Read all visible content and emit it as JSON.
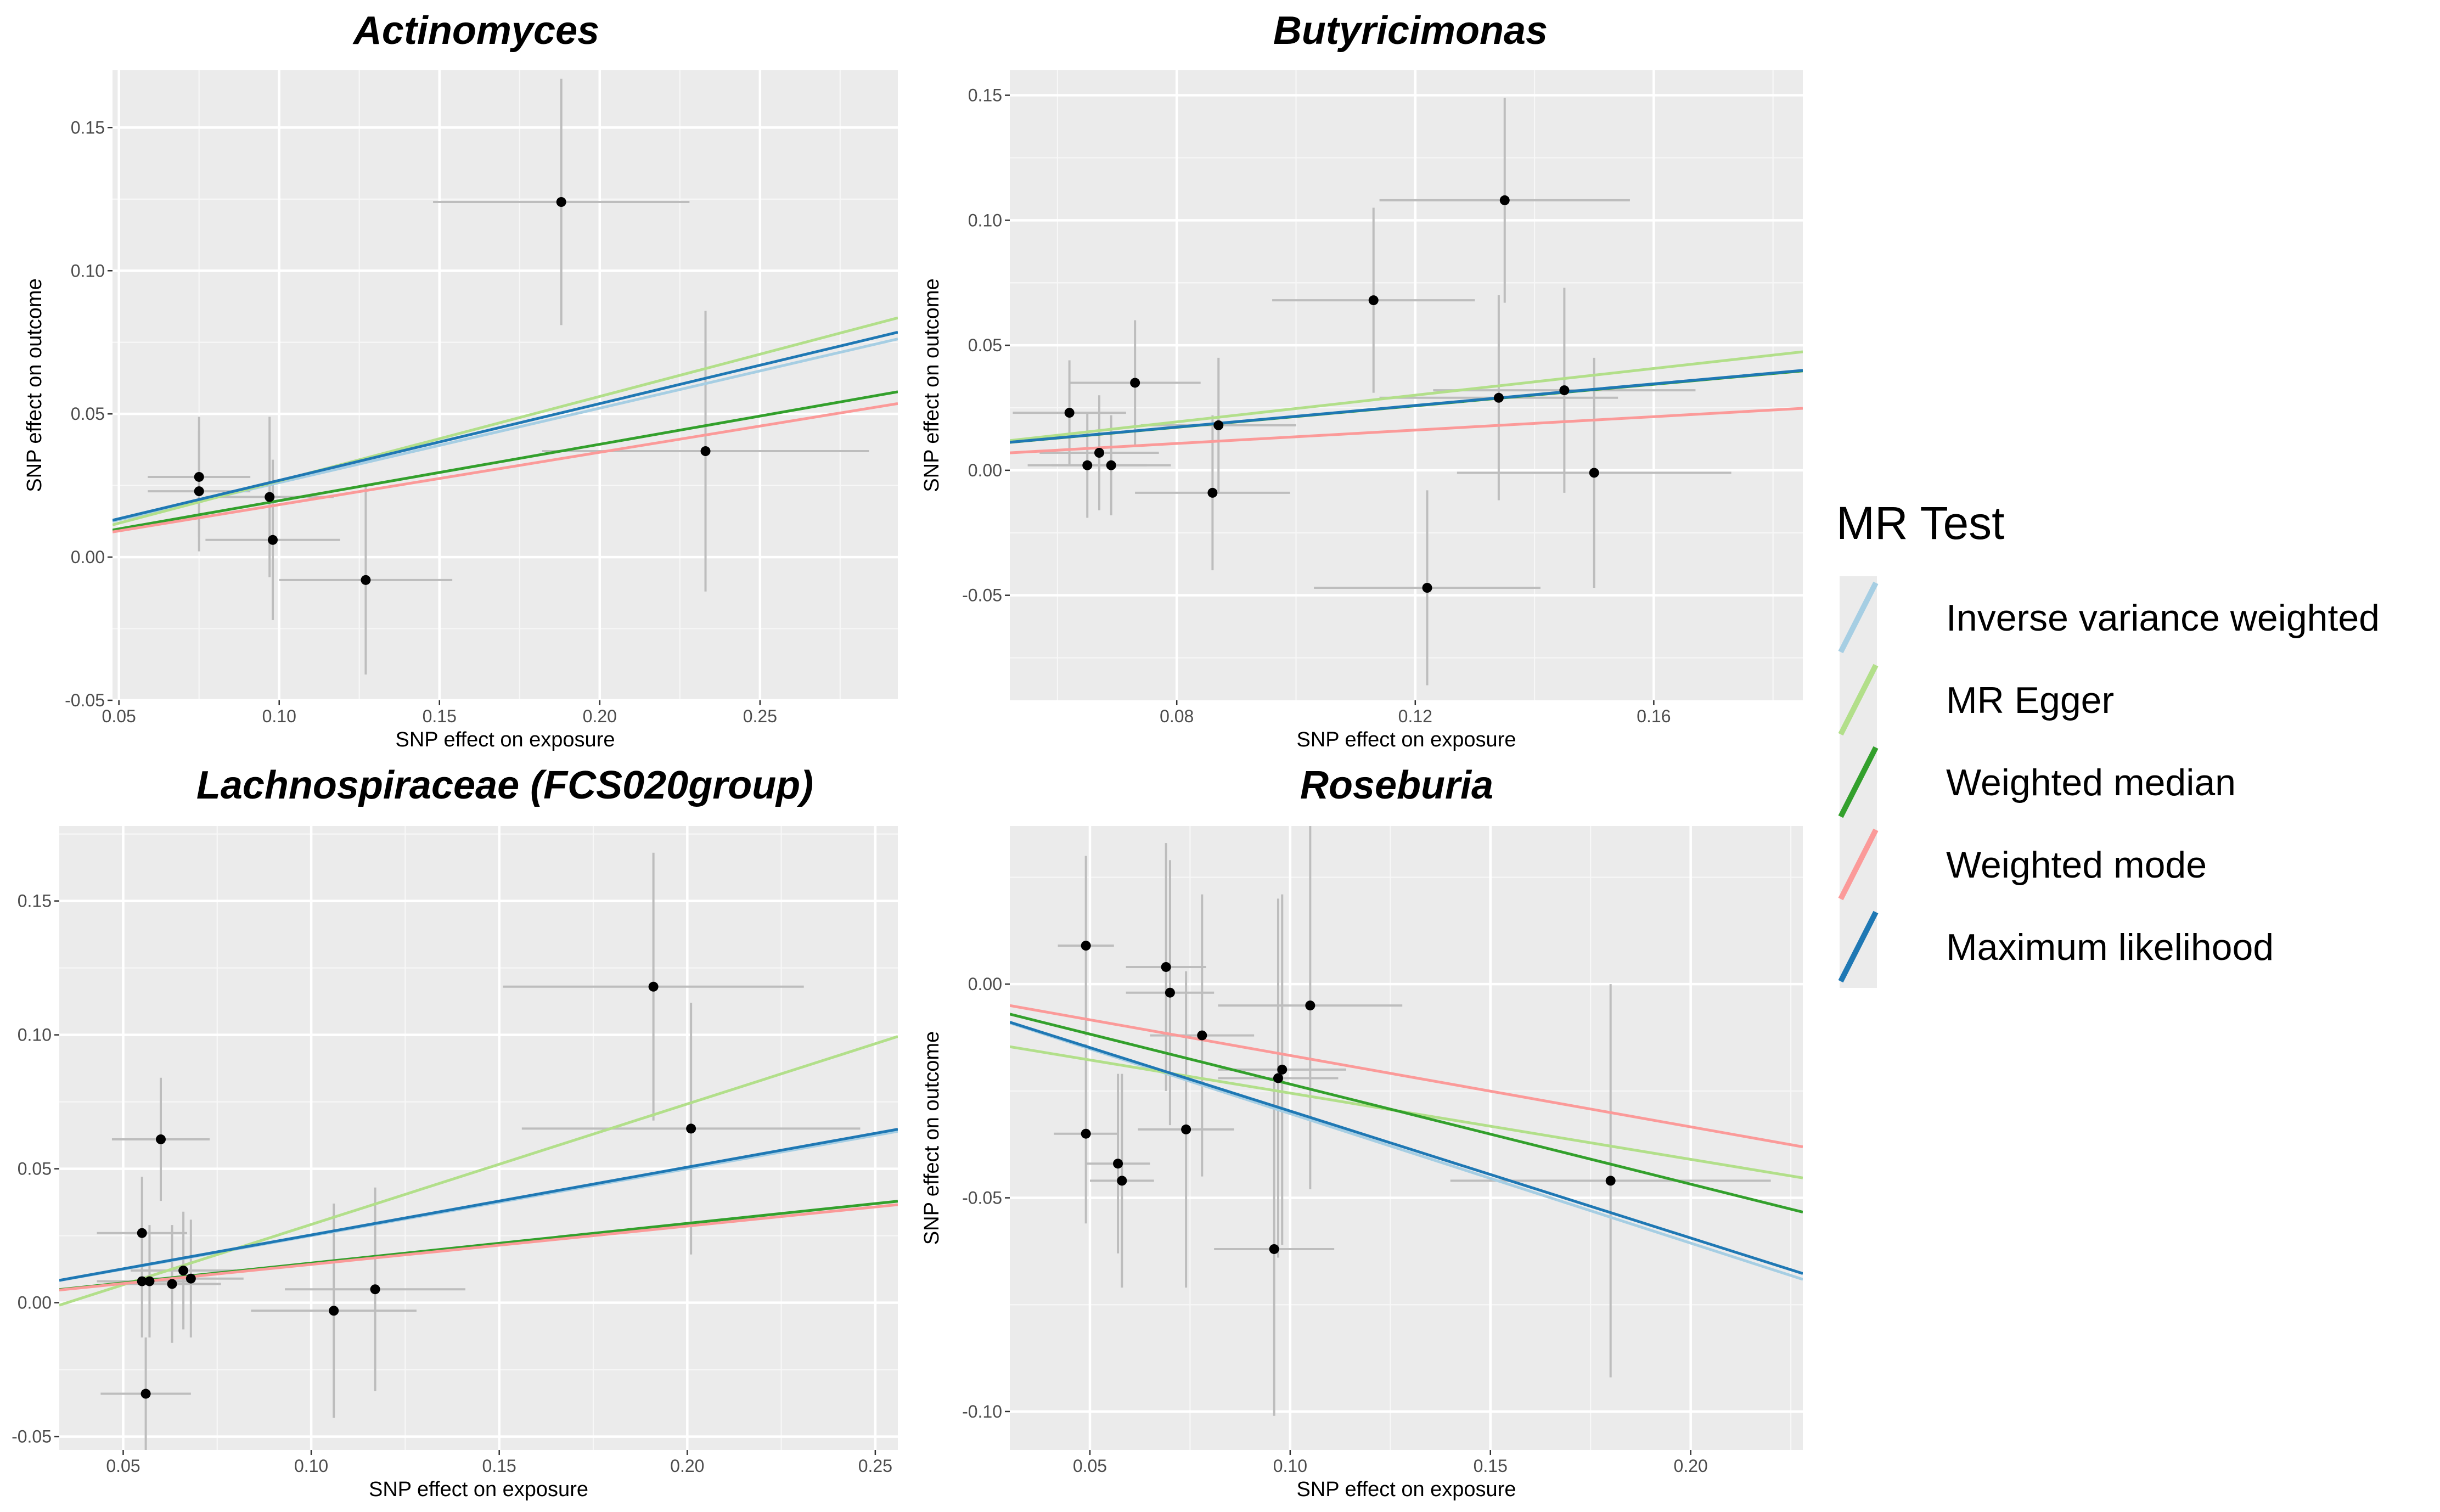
{
  "legend": {
    "title": "MR Test",
    "items": [
      {
        "label": "Inverse variance weighted",
        "color": "#a6cee3"
      },
      {
        "label": "MR Egger",
        "color": "#b2df8a"
      },
      {
        "label": "Weighted median",
        "color": "#33a02c"
      },
      {
        "label": "Weighted mode",
        "color": "#fb9a99"
      },
      {
        "label": "Maximum likelihood",
        "color": "#1f78b4"
      }
    ]
  },
  "chart_data": [
    {
      "type": "scatter",
      "title": "Actinomyces",
      "xlabel": "SNP effect on exposure",
      "ylabel": "SNP effect on outcome",
      "xlim": [
        0.048,
        0.293
      ],
      "ylim": [
        -0.05,
        0.17
      ],
      "xticks": [
        0.05,
        0.1,
        0.15,
        0.2,
        0.25
      ],
      "xtick_labels": [
        "0.05",
        "0.10",
        "0.15",
        "0.20",
        "0.25"
      ],
      "yticks": [
        -0.05,
        0,
        0.05,
        0.1,
        0.15
      ],
      "ytick_labels": [
        "-0.05",
        "0.00",
        "0.05",
        "0.10",
        "0.15"
      ],
      "grid": true,
      "points": [
        {
          "x": 0.075,
          "y": 0.028,
          "xerr": 0.016,
          "yerr": 0.021
        },
        {
          "x": 0.075,
          "y": 0.023,
          "xerr": 0.016,
          "yerr": 0.021
        },
        {
          "x": 0.097,
          "y": 0.021,
          "xerr": 0.02,
          "yerr": 0.028
        },
        {
          "x": 0.098,
          "y": 0.006,
          "xerr": 0.021,
          "yerr": 0.028
        },
        {
          "x": 0.127,
          "y": -0.008,
          "xerr": 0.027,
          "yerr": 0.033
        },
        {
          "x": 0.188,
          "y": 0.124,
          "xerr": 0.04,
          "yerr": 0.043
        },
        {
          "x": 0.233,
          "y": 0.037,
          "xerr": 0.051,
          "yerr": 0.049
        }
      ],
      "lines": [
        {
          "method": "Inverse variance weighted",
          "intercept": 0,
          "slope": 0.26
        },
        {
          "method": "MR Egger",
          "intercept": -0.0029,
          "slope": 0.295
        },
        {
          "method": "Weighted median",
          "intercept": 0,
          "slope": 0.197
        },
        {
          "method": "Weighted mode",
          "intercept": 0,
          "slope": 0.183
        },
        {
          "method": "Maximum likelihood",
          "intercept": 0,
          "slope": 0.268
        }
      ]
    },
    {
      "type": "scatter",
      "title": "Butyricimonas",
      "xlabel": "SNP effect on exposure",
      "ylabel": "SNP effect on outcome",
      "xlim": [
        0.052,
        0.185
      ],
      "ylim": [
        -0.092,
        0.16
      ],
      "xticks": [
        0.08,
        0.12,
        0.16
      ],
      "xtick_labels": [
        "0.08",
        "0.12",
        "0.16"
      ],
      "yticks": [
        -0.05,
        0,
        0.05,
        0.1,
        0.15
      ],
      "ytick_labels": [
        "-0.05",
        "0.00",
        "0.05",
        "0.10",
        "0.15"
      ],
      "grid": true,
      "points": [
        {
          "x": 0.062,
          "y": 0.023,
          "xerr": 0.0095,
          "yerr": 0.021
        },
        {
          "x": 0.065,
          "y": 0.002,
          "xerr": 0.01,
          "yerr": 0.021
        },
        {
          "x": 0.067,
          "y": 0.007,
          "xerr": 0.01,
          "yerr": 0.023
        },
        {
          "x": 0.069,
          "y": 0.002,
          "xerr": 0.01,
          "yerr": 0.02
        },
        {
          "x": 0.073,
          "y": 0.035,
          "xerr": 0.011,
          "yerr": 0.025
        },
        {
          "x": 0.086,
          "y": -0.009,
          "xerr": 0.013,
          "yerr": 0.031
        },
        {
          "x": 0.087,
          "y": 0.018,
          "xerr": 0.013,
          "yerr": 0.027
        },
        {
          "x": 0.113,
          "y": 0.068,
          "xerr": 0.017,
          "yerr": 0.037
        },
        {
          "x": 0.122,
          "y": -0.047,
          "xerr": 0.019,
          "yerr": 0.039
        },
        {
          "x": 0.134,
          "y": 0.029,
          "xerr": 0.02,
          "yerr": 0.041
        },
        {
          "x": 0.135,
          "y": 0.108,
          "xerr": 0.021,
          "yerr": 0.041
        },
        {
          "x": 0.145,
          "y": 0.032,
          "xerr": 0.022,
          "yerr": 0.041
        },
        {
          "x": 0.15,
          "y": -0.001,
          "xerr": 0.023,
          "yerr": 0.046
        }
      ],
      "lines": [
        {
          "method": "Inverse variance weighted",
          "intercept": 0,
          "slope": 0.216
        },
        {
          "method": "MR Egger",
          "intercept": -0.002,
          "slope": 0.267
        },
        {
          "method": "Weighted median",
          "intercept": 0,
          "slope": 0.215
        },
        {
          "method": "Weighted mode",
          "intercept": 0,
          "slope": 0.134
        },
        {
          "method": "Maximum likelihood",
          "intercept": 0,
          "slope": 0.216
        }
      ]
    },
    {
      "type": "scatter",
      "title": "Lachnospiraceae (FCS020group)",
      "xlabel": "SNP effect on exposure",
      "ylabel": "SNP effect on outcome",
      "xlim": [
        0.033,
        0.256
      ],
      "ylim": [
        -0.055,
        0.178
      ],
      "xticks": [
        0.05,
        0.1,
        0.15,
        0.2,
        0.25
      ],
      "xtick_labels": [
        "0.05",
        "0.10",
        "0.15",
        "0.20",
        "0.25"
      ],
      "yticks": [
        -0.05,
        0,
        0.05,
        0.1,
        0.15
      ],
      "ytick_labels": [
        "-0.05",
        "0.00",
        "0.05",
        "0.10",
        "0.15"
      ],
      "grid": true,
      "points": [
        {
          "x": 0.055,
          "y": 0.026,
          "xerr": 0.012,
          "yerr": 0.021
        },
        {
          "x": 0.055,
          "y": 0.008,
          "xerr": 0.012,
          "yerr": 0.021
        },
        {
          "x": 0.056,
          "y": -0.034,
          "xerr": 0.012,
          "yerr": 0.021
        },
        {
          "x": 0.057,
          "y": 0.008,
          "xerr": 0.012,
          "yerr": 0.021
        },
        {
          "x": 0.06,
          "y": 0.061,
          "xerr": 0.013,
          "yerr": 0.023
        },
        {
          "x": 0.063,
          "y": 0.007,
          "xerr": 0.013,
          "yerr": 0.022
        },
        {
          "x": 0.066,
          "y": 0.012,
          "xerr": 0.014,
          "yerr": 0.022
        },
        {
          "x": 0.068,
          "y": 0.009,
          "xerr": 0.014,
          "yerr": 0.022
        },
        {
          "x": 0.106,
          "y": -0.003,
          "xerr": 0.022,
          "yerr": 0.04
        },
        {
          "x": 0.117,
          "y": 0.005,
          "xerr": 0.024,
          "yerr": 0.038
        },
        {
          "x": 0.191,
          "y": 0.118,
          "xerr": 0.04,
          "yerr": 0.05
        },
        {
          "x": 0.201,
          "y": 0.065,
          "xerr": 0.045,
          "yerr": 0.047
        }
      ],
      "lines": [
        {
          "method": "Inverse variance weighted",
          "intercept": 0,
          "slope": 0.25
        },
        {
          "method": "MR Egger",
          "intercept": -0.0158,
          "slope": 0.45
        },
        {
          "method": "Weighted median",
          "intercept": 0,
          "slope": 0.148
        },
        {
          "method": "Weighted mode",
          "intercept": 0,
          "slope": 0.143
        },
        {
          "method": "Maximum likelihood",
          "intercept": 0,
          "slope": 0.253
        }
      ]
    },
    {
      "type": "scatter",
      "title": "Roseburia",
      "xlabel": "SNP effect on exposure",
      "ylabel": "SNP effect on outcome",
      "xlim": [
        0.03,
        0.228
      ],
      "ylim": [
        -0.109,
        0.037
      ],
      "xticks": [
        0.05,
        0.1,
        0.15,
        0.2
      ],
      "xtick_labels": [
        "0.05",
        "0.10",
        "0.15",
        "0.20"
      ],
      "yticks": [
        -0.1,
        -0.05,
        0
      ],
      "ytick_labels": [
        "-0.10",
        "-0.05",
        "0.00"
      ],
      "grid": true,
      "points": [
        {
          "x": 0.049,
          "y": -0.035,
          "xerr": 0.008,
          "yerr": 0.021
        },
        {
          "x": 0.049,
          "y": 0.009,
          "xerr": 0.007,
          "yerr": 0.021
        },
        {
          "x": 0.057,
          "y": -0.042,
          "xerr": 0.008,
          "yerr": 0.021
        },
        {
          "x": 0.058,
          "y": -0.046,
          "xerr": 0.008,
          "yerr": 0.025
        },
        {
          "x": 0.069,
          "y": 0.004,
          "xerr": 0.01,
          "yerr": 0.029
        },
        {
          "x": 0.07,
          "y": -0.002,
          "xerr": 0.011,
          "yerr": 0.031
        },
        {
          "x": 0.074,
          "y": -0.034,
          "xerr": 0.012,
          "yerr": 0.037
        },
        {
          "x": 0.078,
          "y": -0.012,
          "xerr": 0.013,
          "yerr": 0.033
        },
        {
          "x": 0.096,
          "y": -0.062,
          "xerr": 0.015,
          "yerr": 0.039
        },
        {
          "x": 0.097,
          "y": -0.022,
          "xerr": 0.015,
          "yerr": 0.042
        },
        {
          "x": 0.098,
          "y": -0.02,
          "xerr": 0.016,
          "yerr": 0.041
        },
        {
          "x": 0.105,
          "y": -0.005,
          "xerr": 0.023,
          "yerr": 0.043
        },
        {
          "x": 0.18,
          "y": -0.046,
          "xerr": 0.04,
          "yerr": 0.046
        }
      ],
      "lines": [
        {
          "method": "Inverse variance weighted",
          "intercept": 0,
          "slope": -0.303
        },
        {
          "method": "MR Egger",
          "intercept": -0.01,
          "slope": -0.155
        },
        {
          "method": "Weighted median",
          "intercept": 0,
          "slope": -0.234
        },
        {
          "method": "Weighted mode",
          "intercept": 0,
          "slope": -0.167
        },
        {
          "method": "Maximum likelihood",
          "intercept": 0,
          "slope": -0.297
        }
      ]
    }
  ]
}
